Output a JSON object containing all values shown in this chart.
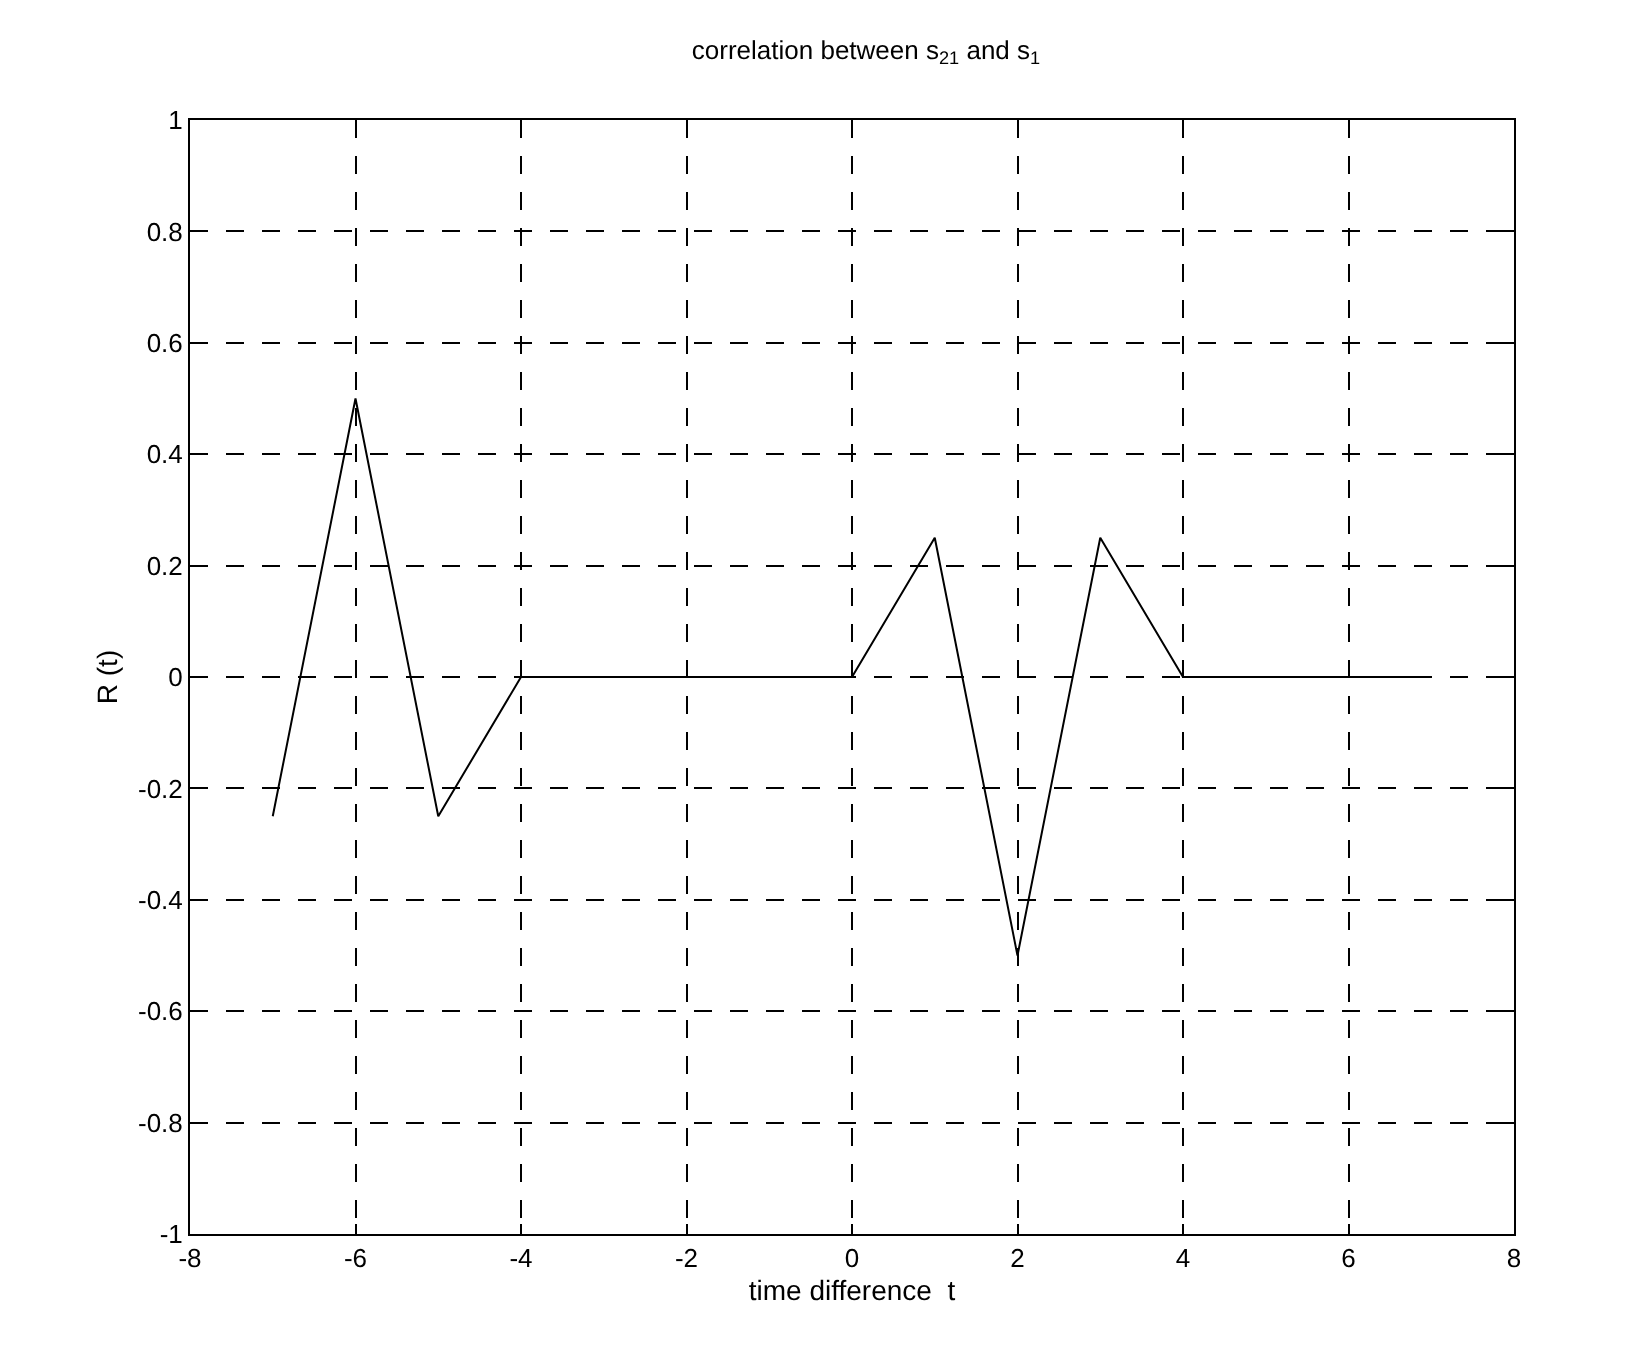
{
  "chart_data": {
    "type": "line",
    "title": "correlation between s$_{21}$ and s$_{1}$",
    "xlabel": "time difference  t",
    "ylabel": "R (t)",
    "x": [
      -7,
      -6,
      -5,
      -4,
      -3,
      -2,
      -1,
      0,
      1,
      2,
      3,
      4,
      5,
      6,
      7
    ],
    "series": [
      {
        "color": "#000000",
        "values": [
          -0.25,
          0.5,
          -0.25,
          0,
          0,
          0,
          0,
          0,
          0.25,
          -0.5,
          0.25,
          0,
          0,
          0,
          0
        ]
      }
    ],
    "xlim": [
      -8,
      8
    ],
    "xticks": [
      -8,
      -6,
      -4,
      -2,
      0,
      2,
      4,
      6,
      8
    ],
    "ylim": [
      -1,
      1
    ],
    "yticks": [
      -1,
      -0.8,
      -0.6,
      -0.4,
      -0.2,
      0,
      0.2,
      0.4,
      0.6,
      0.8,
      1
    ],
    "grid": true,
    "line_style": "solid",
    "marker": "none"
  }
}
